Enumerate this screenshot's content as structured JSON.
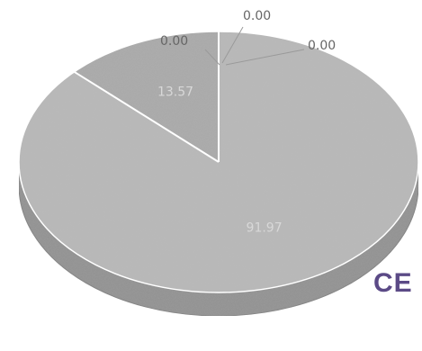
{
  "chart_data": {
    "type": "pie",
    "style": "3d",
    "slices": [
      {
        "value": 91.97,
        "label": "91.97",
        "color": "#b8b8b8"
      },
      {
        "value": 13.57,
        "label": "13.57",
        "color": "#a9a9a9"
      },
      {
        "value": 0.0,
        "label": "0.00",
        "color": "#b0b0b0"
      },
      {
        "value": 0.0,
        "label": "0.00",
        "color": "#b0b0b0"
      },
      {
        "value": 0.0,
        "label": "0.00",
        "color": "#b0b0b0"
      }
    ]
  },
  "watermark": {
    "text": "CE",
    "color": "#5b4a86"
  },
  "colors": {
    "label_dark": "#666666",
    "label_light": "#d8d8d8",
    "side": "#8f8f8f",
    "side_dark": "#7d7d7d",
    "leader": "#9a9a9a"
  }
}
